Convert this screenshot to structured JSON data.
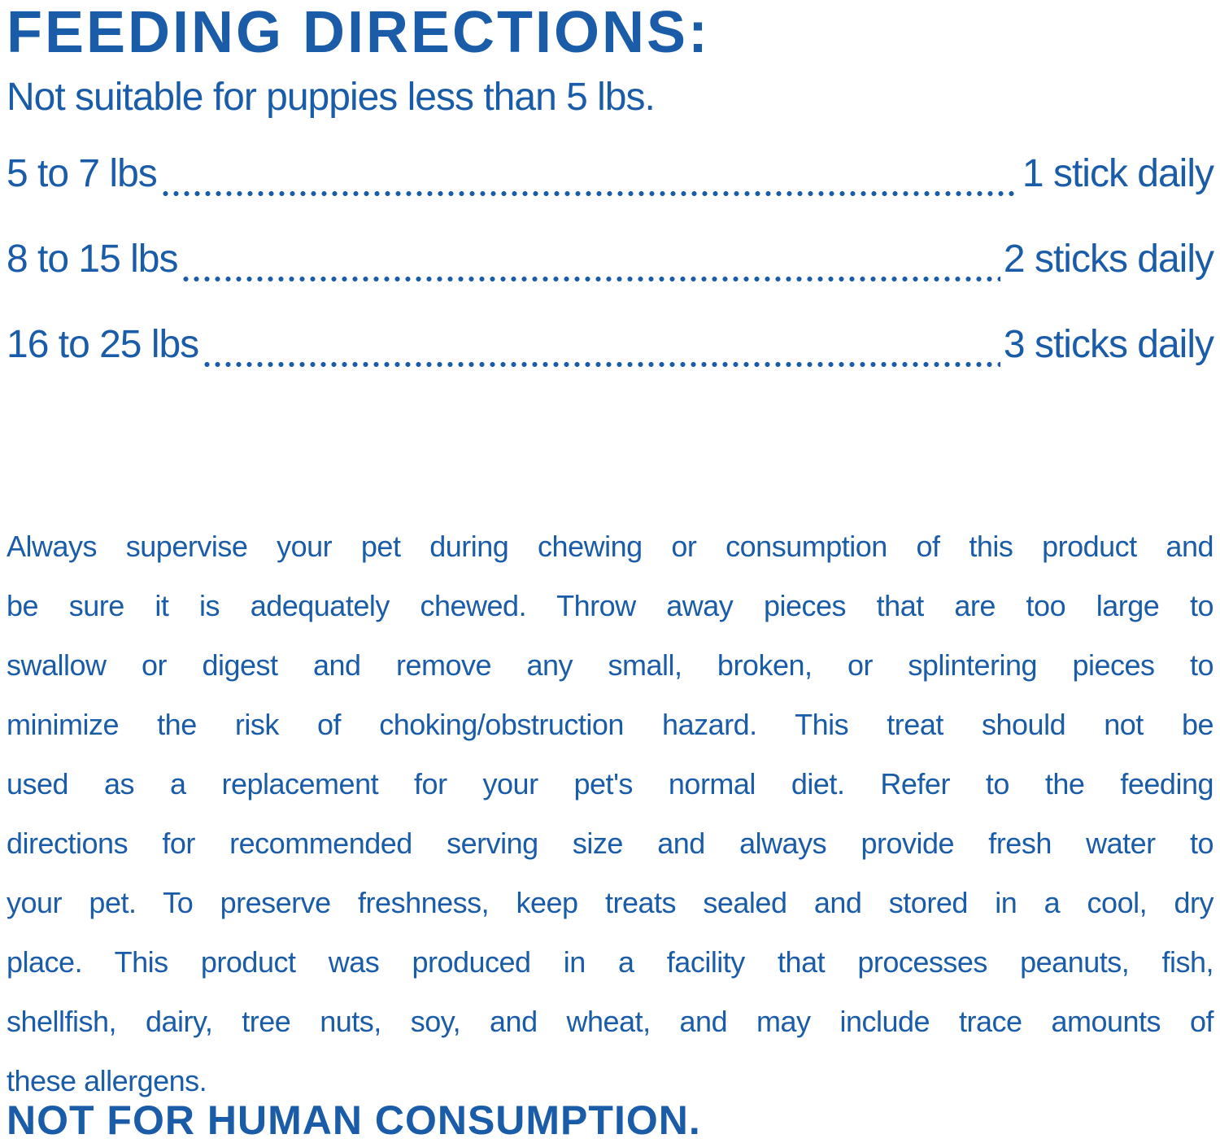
{
  "colors": {
    "text_blue": "#1a5ca8",
    "background": "#ffffff"
  },
  "header": {
    "title": "FEEDING DIRECTIONS:"
  },
  "subtitle": "Not suitable for puppies less than 5 lbs.",
  "feeding_table": {
    "rows": [
      {
        "range": "5 to 7 lbs",
        "amount": "1 stick daily"
      },
      {
        "range": "8 to 15 lbs",
        "amount": "2 sticks daily"
      },
      {
        "range": "16 to 25 lbs",
        "amount": "3 sticks daily"
      }
    ]
  },
  "supervision_paragraph": {
    "lines": [
      "Always supervise your pet during chewing or consumption of this product and",
      "be sure it is adequately chewed. Throw away pieces that are too large to",
      "swallow or digest and remove any small, broken, or splintering pieces to",
      "minimize the risk of choking/obstruction hazard. This treat should not be",
      "used as a replacement for your pet's normal diet. Refer to the feeding",
      "directions for recommended serving size and always provide fresh water to",
      "your pet. To preserve freshness, keep treats sealed and stored in a cool, dry",
      "place. This product was produced in a facility that processes peanuts, fish,",
      "shellfish, dairy, tree nuts, soy, and wheat, and may include trace amounts of",
      "these allergens."
    ]
  },
  "footer": {
    "warning": "NOT FOR HUMAN CONSUMPTION."
  }
}
